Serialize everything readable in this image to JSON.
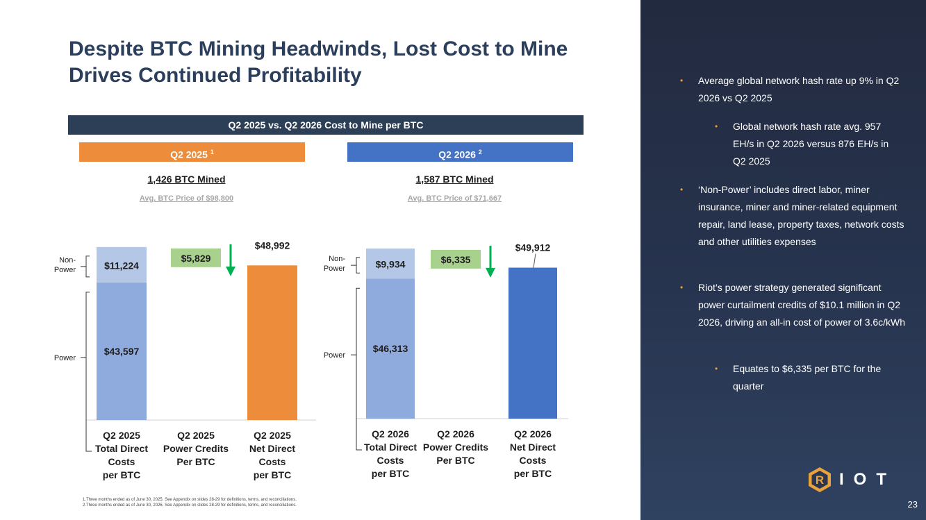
{
  "title_line1": "Despite BTC Mining Headwinds, Lost Cost to Mine",
  "title_line2": "Drives Continued Profitability",
  "banner": "Q2 2025 vs. Q2 2026 Cost to Mine per BTC",
  "period1": {
    "label": "Q2 2025",
    "sup": "1",
    "mined": "1,426 BTC Mined",
    "avg": "Avg. BTC Price of $98,800"
  },
  "period2": {
    "label": "Q2 2026",
    "sup": "2",
    "mined": "1,587 BTC Mined",
    "avg": "Avg. BTC Price of $71,667"
  },
  "chart_data": [
    {
      "type": "bar",
      "categories": [
        "Q2 2025 Total Direct Costs per BTC",
        "Q2 2025 Power Credits Per BTC",
        "Q2 2025 Net Direct Costs per BTC"
      ],
      "category_lines": [
        [
          "Q2 2025",
          "Total Direct",
          "Costs",
          "per BTC"
        ],
        [
          "Q2 2025",
          "Power Credits",
          "Per BTC"
        ],
        [
          "Q2 2025",
          "Net Direct",
          "Costs",
          "per BTC"
        ]
      ],
      "stack": {
        "power": 43597,
        "non_power": 11224
      },
      "power_label": "$43,597",
      "non_power_label": "$11,224",
      "credit": 5829,
      "credit_label": "$5,829",
      "net": 48992,
      "net_label": "$48,992",
      "bracket_labels": {
        "non_power": [
          "Non-",
          "Power"
        ],
        "power": [
          "Power"
        ]
      },
      "ylim": [
        0,
        60000
      ],
      "colors": {
        "power": "#8faadc",
        "non_power": "#b4c7e7",
        "credit": "#a9d18e",
        "net": "#ed8c3b",
        "arrow": "#00b050"
      }
    },
    {
      "type": "bar",
      "categories": [
        "Q2 2026 Total Direct Costs per BTC",
        "Q2 2026 Power Credits Per BTC",
        "Q2 2026 Net Direct Costs per BTC"
      ],
      "category_lines": [
        [
          "Q2 2026",
          "Total Direct",
          "Costs",
          "per BTC"
        ],
        [
          "Q2 2026",
          "Power Credits",
          "Per BTC"
        ],
        [
          "Q2 2026",
          "Net Direct",
          "Costs",
          "per BTC"
        ]
      ],
      "stack": {
        "power": 46313,
        "non_power": 9934
      },
      "power_label": "$46,313",
      "non_power_label": "$9,934",
      "credit": 6335,
      "credit_label": "$6,335",
      "net": 49912,
      "net_label": "$49,912",
      "bracket_labels": {
        "non_power": [
          "Non-",
          "Power"
        ],
        "power": [
          "Power"
        ]
      },
      "ylim": [
        0,
        60000
      ],
      "colors": {
        "power": "#8faadc",
        "non_power": "#b4c7e7",
        "credit": "#a9d18e",
        "net": "#4472c4",
        "arrow": "#00b050"
      }
    }
  ],
  "footnotes": [
    "1.Three months ended as of June 30, 2025. See Appendix on slides 28-29 for definitions, terms, and reconciliations.",
    "2.Three months ended as of June 30, 2026. See Appendix on slides 28-29 for definitions, terms, and reconciliations."
  ],
  "bullets": {
    "b1": "Average global network hash rate up 9% in Q2 2026 vs Q2 2025",
    "b1a": "Global network hash rate avg. 957 EH/s in Q2 2026 versus 876 EH/s in Q2 2025",
    "b2": "‘Non-Power’ includes direct labor, miner insurance, miner and miner-related equipment repair, land lease, property taxes, network costs and other utilities expenses",
    "b3": "Riot’s power strategy generated significant power curtailment credits of $10.1 million in Q2 2026, driving an all-in cost of power of 3.6c/kWh",
    "b3a": "Equates to $6,335 per BTC for the quarter"
  },
  "logo_text": "IOT",
  "logo_letter": "R",
  "page_number": "23",
  "colors": {
    "accent_orange": "#ed8c3b",
    "accent_blue": "#4472c4",
    "navy": "#2c3f57",
    "bullet": "#e8a33d"
  }
}
